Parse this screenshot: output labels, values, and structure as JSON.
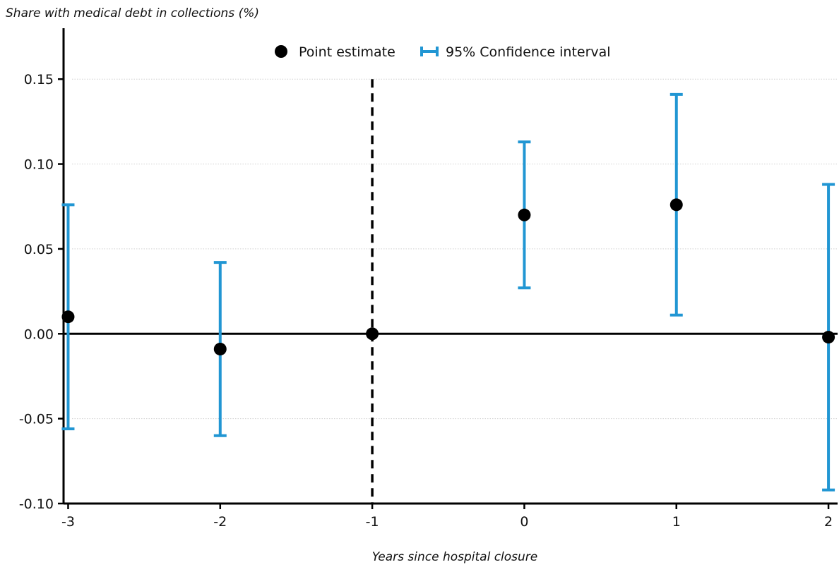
{
  "chart_data": {
    "type": "scatter",
    "title": "Share with medical debt in collections  (%)",
    "xlabel": "Years since hospital closure",
    "ylabel": "",
    "x_ticks": [
      -3,
      -2,
      -1,
      0,
      1,
      2
    ],
    "x_tick_labels": [
      "-3",
      "-2",
      "-1",
      "0",
      "1",
      "2"
    ],
    "y_ticks": [
      -0.1,
      -0.05,
      0.0,
      0.05,
      0.1,
      0.15
    ],
    "y_tick_labels": [
      "-0.10",
      "-0.05",
      "0.00",
      "0.05",
      "0.10",
      "0.15"
    ],
    "xlim": [
      -3.03,
      2.06
    ],
    "ylim": [
      -0.1,
      0.18
    ],
    "grid": true,
    "reference_lines": {
      "horizontal_at_y": 0,
      "vertical_dashed_at_x": -1
    },
    "legend": {
      "placement": "top-center",
      "items": [
        "Point estimate",
        "95% Confidence interval"
      ]
    },
    "colors": {
      "point": "#000000",
      "interval": "#2196d3",
      "axis": "#000000",
      "grid": "#d0d0d0"
    },
    "series": [
      {
        "name": "Point estimate",
        "x": [
          -3,
          -2,
          -1,
          0,
          1,
          2
        ],
        "y": [
          0.01,
          -0.009,
          0.0,
          0.07,
          0.076,
          -0.002
        ]
      },
      {
        "name": "95% Confidence interval",
        "x": [
          -3,
          -2,
          -1,
          0,
          1,
          2
        ],
        "low": [
          -0.056,
          -0.06,
          null,
          0.027,
          0.011,
          -0.092
        ],
        "high": [
          0.076,
          0.042,
          null,
          0.113,
          0.141,
          0.088
        ]
      }
    ]
  }
}
